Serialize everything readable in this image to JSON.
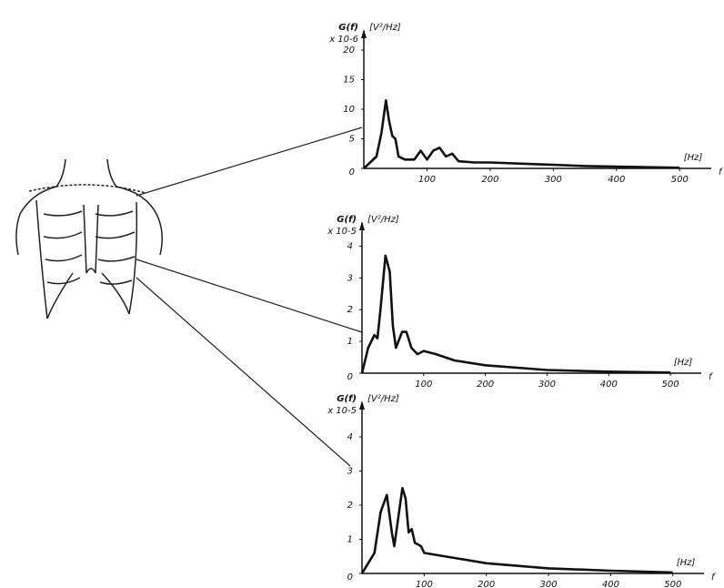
{
  "chart_data": [
    {
      "type": "line",
      "y_label": "G(f)",
      "y_multiplier": "x 10-6",
      "y_unit": "[V²/Hz]",
      "x_unit": "[Hz]",
      "x_label": "f",
      "color": "#111111",
      "x": [
        0,
        10,
        20,
        28,
        35,
        40,
        45,
        50,
        55,
        65,
        80,
        90,
        100,
        110,
        120,
        130,
        140,
        150,
        175,
        200,
        250,
        300,
        350,
        400,
        450,
        500
      ],
      "values": [
        0,
        1,
        2,
        6,
        11.5,
        8,
        5.5,
        5,
        2,
        1.5,
        1.5,
        3,
        1.5,
        3,
        3.5,
        2,
        2.5,
        1.2,
        1,
        1,
        0.8,
        0.6,
        0.4,
        0.3,
        0.2,
        0.1
      ],
      "xlim": [
        0,
        550
      ],
      "ylim": [
        0,
        22
      ],
      "xticks": [
        100,
        200,
        300,
        400,
        500
      ],
      "yticks": [
        0,
        5,
        10,
        15,
        20
      ]
    },
    {
      "type": "line",
      "y_label": "G(f)",
      "y_multiplier": "x 10-5",
      "y_unit": "[V²/Hz]",
      "x_unit": "[Hz]",
      "x_label": "f",
      "color": "#111111",
      "x": [
        0,
        10,
        20,
        25,
        30,
        38,
        45,
        50,
        55,
        65,
        72,
        80,
        90,
        100,
        120,
        150,
        200,
        300,
        400,
        500
      ],
      "values": [
        0,
        0.8,
        1.2,
        1.1,
        2,
        3.7,
        3.2,
        1.5,
        0.8,
        1.3,
        1.3,
        0.8,
        0.6,
        0.7,
        0.6,
        0.4,
        0.25,
        0.1,
        0.05,
        0.02
      ],
      "xlim": [
        0,
        550
      ],
      "ylim": [
        0,
        4.5
      ],
      "xticks": [
        100,
        200,
        300,
        400,
        500
      ],
      "yticks": [
        0,
        1,
        2,
        3,
        4
      ]
    },
    {
      "type": "line",
      "y_label": "G(f)",
      "y_multiplier": "x 10-5",
      "y_unit": "[V²/Hz]",
      "x_unit": "[Hz]",
      "x_label": "f",
      "color": "#111111",
      "x": [
        0,
        10,
        20,
        30,
        40,
        48,
        52,
        58,
        65,
        70,
        75,
        80,
        85,
        95,
        100,
        150,
        200,
        300,
        400,
        500
      ],
      "values": [
        0,
        0.3,
        0.6,
        1.8,
        2.3,
        1.2,
        0.8,
        1.6,
        2.5,
        2.2,
        1.2,
        1.3,
        0.9,
        0.8,
        0.6,
        0.45,
        0.3,
        0.15,
        0.08,
        0.03
      ],
      "xlim": [
        0,
        550
      ],
      "ylim": [
        0,
        4.8
      ],
      "xticks": [
        100,
        200,
        300,
        400,
        500
      ],
      "yticks": [
        0,
        1,
        2,
        3,
        4
      ]
    }
  ]
}
